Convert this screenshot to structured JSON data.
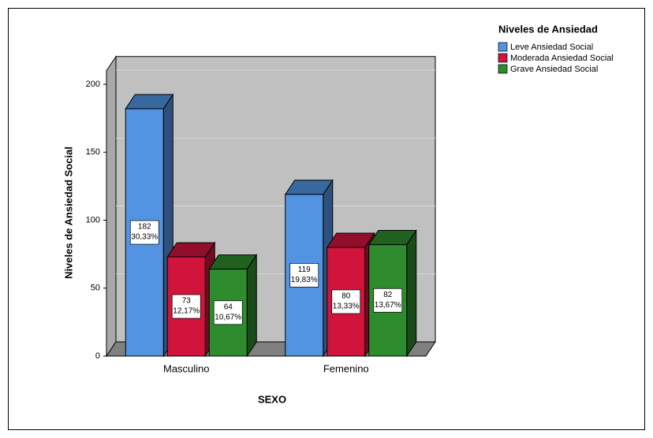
{
  "chart_data": {
    "type": "bar3d",
    "x_label": "SEXO",
    "y_label": "Niveles de Ansiedad Social",
    "legend_title": "Niveles de Ansiedad",
    "legend_position": "top-right",
    "categories": [
      "Masculino",
      "Femenino"
    ],
    "series": [
      {
        "name": "Leve Ansiedad Social",
        "color": "#5294e2",
        "values": [
          182,
          119
        ],
        "percent_labels": [
          "30,33%",
          "19,83%"
        ]
      },
      {
        "name": "Moderada Ansiedad Social",
        "color": "#d0143c",
        "values": [
          73,
          80
        ],
        "percent_labels": [
          "12,17%",
          "13,33%"
        ]
      },
      {
        "name": "Grave Ansiedad Social",
        "color": "#2e8b2e",
        "values": [
          64,
          82
        ],
        "percent_labels": [
          "10,67%",
          "13,67%"
        ]
      }
    ],
    "ylim": [
      0,
      210
    ],
    "yticks": [
      0,
      50,
      100,
      150,
      200
    ],
    "grid": true
  }
}
